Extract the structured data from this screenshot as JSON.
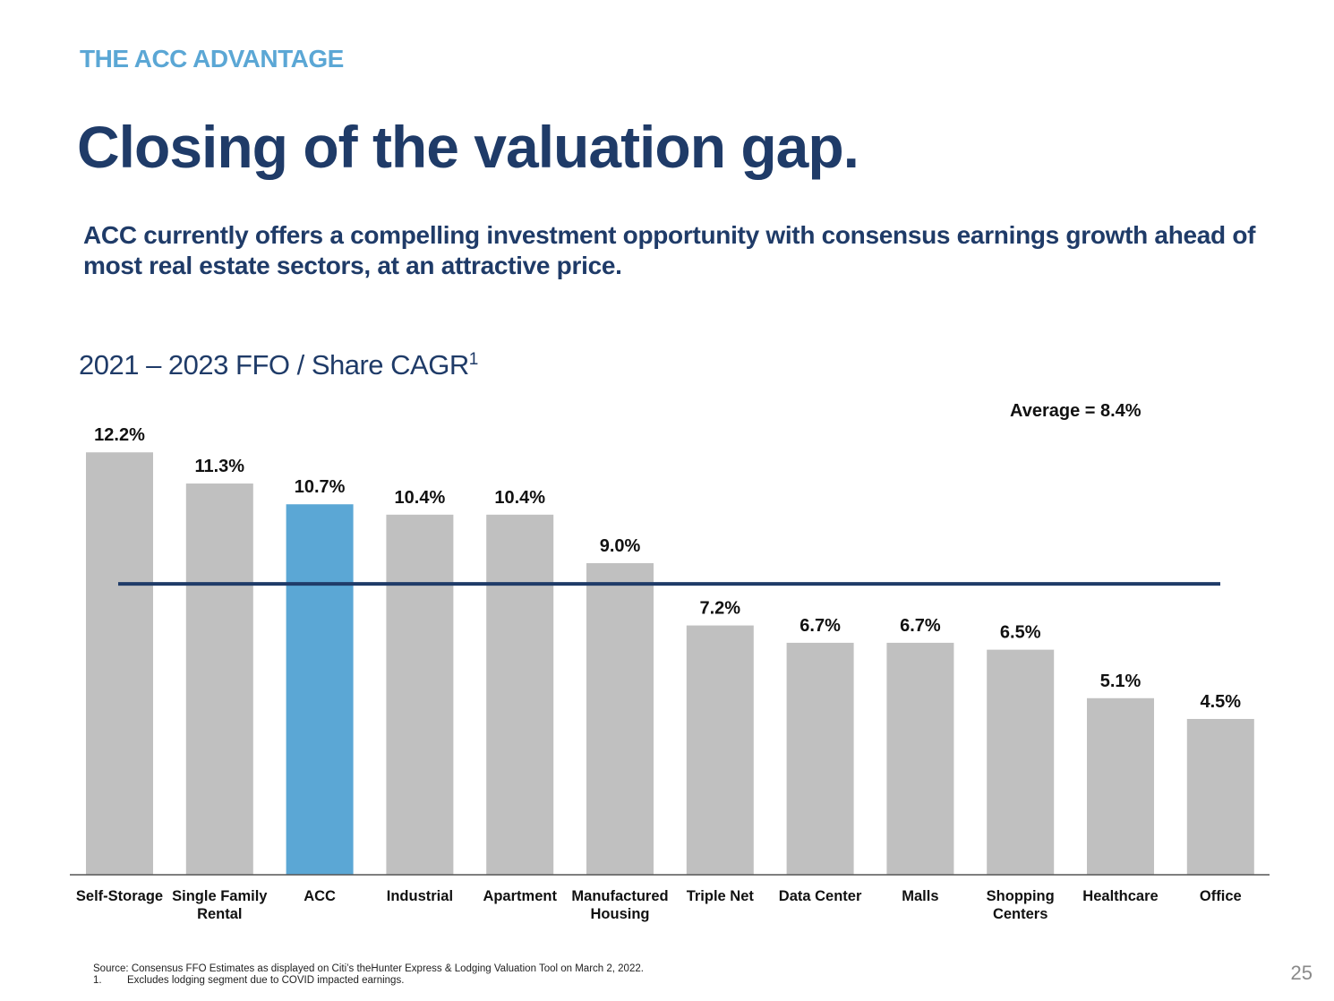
{
  "header": {
    "eyebrow": "THE ACC ADVANTAGE",
    "title": "Closing of the valuation gap.",
    "subtitle": "ACC currently offers a compelling investment opportunity with consensus earnings growth ahead of most real estate sectors, at an attractive price."
  },
  "chart_heading": {
    "text": "2021 – 2023 FFO / Share CAGR",
    "footnote_marker": "1"
  },
  "colors": {
    "eyebrow": "#5ba7d5",
    "navy": "#1f3b68",
    "bar_default": "#c0c0c0",
    "bar_highlight": "#5ba7d5",
    "average_line": "#1f3b68",
    "axis": "#555555"
  },
  "chart_data": {
    "type": "bar",
    "categories": [
      "Self-Storage",
      "Single Family\nRental",
      "ACC",
      "Industrial",
      "Apartment",
      "Manufactured\nHousing",
      "Triple Net",
      "Data Center",
      "Malls",
      "Shopping\nCenters",
      "Healthcare",
      "Office"
    ],
    "values": [
      12.2,
      11.3,
      10.7,
      10.4,
      10.4,
      9.0,
      7.2,
      6.7,
      6.7,
      6.5,
      5.1,
      4.5
    ],
    "value_labels": [
      "12.2%",
      "11.3%",
      "10.7%",
      "10.4%",
      "10.4%",
      "9.0%",
      "7.2%",
      "6.7%",
      "6.7%",
      "6.5%",
      "5.1%",
      "4.5%"
    ],
    "highlight": "ACC",
    "average": 8.4,
    "average_label": "Average = 8.4%",
    "ylim": [
      0,
      13
    ],
    "grid": false,
    "legend": "none"
  },
  "footer": {
    "source": "Source: Consensus FFO Estimates as displayed on Citi’s theHunter Express & Lodging Valuation Tool on March 2, 2022.",
    "note_number": "1.",
    "note_text": "Excludes lodging segment due to COVID impacted earnings.",
    "page_number": "25"
  }
}
